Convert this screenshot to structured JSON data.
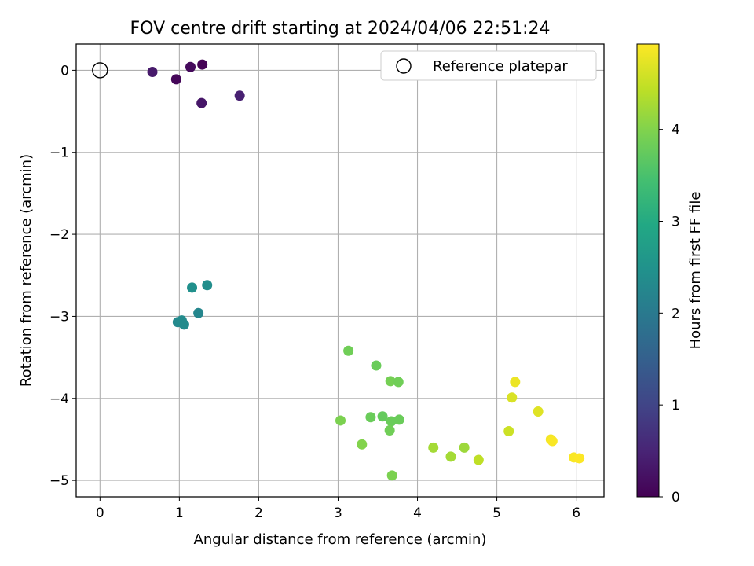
{
  "chart_data": {
    "type": "scatter",
    "title": "FOV centre drift starting at 2024/04/06 22:51:24",
    "xlabel": "Angular distance from reference (arcmin)",
    "ylabel": "Rotation from reference (arcmin)",
    "xlim": [
      -0.3,
      6.35
    ],
    "ylim": [
      -5.2,
      0.32
    ],
    "xticks": [
      0,
      1,
      2,
      3,
      4,
      5,
      6
    ],
    "yticks": [
      0,
      -1,
      -2,
      -3,
      -4,
      -5
    ],
    "ytick_labels": [
      "0",
      "−1",
      "−2",
      "−3",
      "−4",
      "−5"
    ],
    "grid": true,
    "legend": {
      "position": "top-right",
      "label": "Reference platepar"
    },
    "reference_point": {
      "x": 0,
      "y": 0
    },
    "colorbar": {
      "label": "Hours from first FF file",
      "range": [
        0,
        4.93
      ],
      "ticks": [
        0,
        1,
        2,
        3,
        4
      ],
      "colormap": "viridis"
    },
    "points": [
      {
        "x": 0.66,
        "y": -0.02,
        "h": 0.35
      },
      {
        "x": 0.96,
        "y": -0.11,
        "h": 0.08
      },
      {
        "x": 1.14,
        "y": 0.04,
        "h": 0.12
      },
      {
        "x": 1.29,
        "y": 0.07,
        "h": 0.02
      },
      {
        "x": 1.28,
        "y": -0.4,
        "h": 0.3
      },
      {
        "x": 1.76,
        "y": -0.31,
        "h": 0.45
      },
      {
        "x": 1.16,
        "y": -2.65,
        "h": 2.45
      },
      {
        "x": 1.35,
        "y": -2.62,
        "h": 2.4
      },
      {
        "x": 1.24,
        "y": -2.96,
        "h": 2.25
      },
      {
        "x": 0.98,
        "y": -3.07,
        "h": 2.3
      },
      {
        "x": 1.03,
        "y": -3.05,
        "h": 2.35
      },
      {
        "x": 1.06,
        "y": -3.1,
        "h": 2.35
      },
      {
        "x": 3.13,
        "y": -3.42,
        "h": 3.85
      },
      {
        "x": 3.48,
        "y": -3.6,
        "h": 3.8
      },
      {
        "x": 3.66,
        "y": -3.79,
        "h": 3.9
      },
      {
        "x": 3.76,
        "y": -3.8,
        "h": 3.85
      },
      {
        "x": 3.03,
        "y": -4.27,
        "h": 3.95
      },
      {
        "x": 3.41,
        "y": -4.23,
        "h": 3.8
      },
      {
        "x": 3.56,
        "y": -4.22,
        "h": 3.75
      },
      {
        "x": 3.67,
        "y": -4.28,
        "h": 3.8
      },
      {
        "x": 3.77,
        "y": -4.26,
        "h": 3.8
      },
      {
        "x": 3.65,
        "y": -4.39,
        "h": 3.85
      },
      {
        "x": 3.3,
        "y": -4.56,
        "h": 4.0
      },
      {
        "x": 3.68,
        "y": -4.94,
        "h": 3.95
      },
      {
        "x": 4.2,
        "y": -4.6,
        "h": 4.25
      },
      {
        "x": 4.42,
        "y": -4.71,
        "h": 4.25
      },
      {
        "x": 4.59,
        "y": -4.6,
        "h": 4.2
      },
      {
        "x": 4.77,
        "y": -4.75,
        "h": 4.45
      },
      {
        "x": 5.15,
        "y": -4.4,
        "h": 4.55
      },
      {
        "x": 5.19,
        "y": -3.99,
        "h": 4.65
      },
      {
        "x": 5.23,
        "y": -3.8,
        "h": 4.8
      },
      {
        "x": 5.52,
        "y": -4.16,
        "h": 4.7
      },
      {
        "x": 5.68,
        "y": -4.5,
        "h": 4.85
      },
      {
        "x": 5.7,
        "y": -4.52,
        "h": 4.9
      },
      {
        "x": 5.97,
        "y": -4.72,
        "h": 4.9
      },
      {
        "x": 6.04,
        "y": -4.73,
        "h": 4.92
      }
    ]
  }
}
